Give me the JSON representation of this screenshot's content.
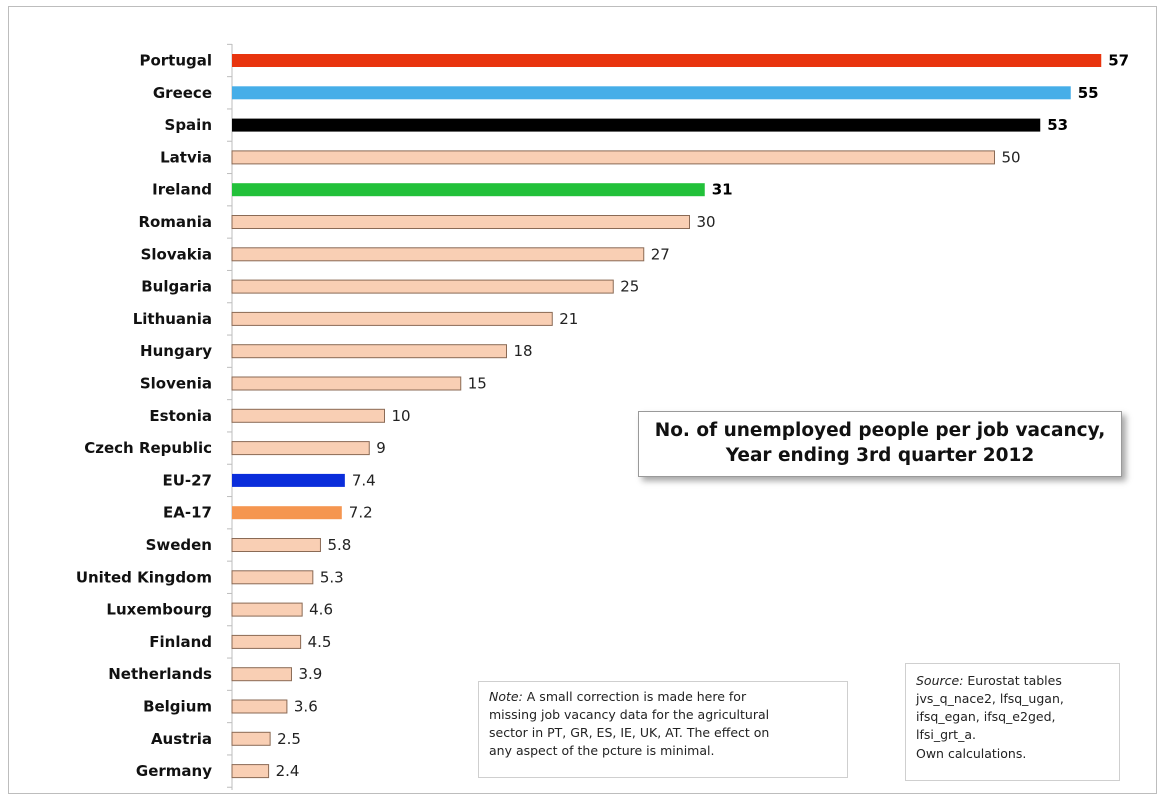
{
  "chart_data": {
    "type": "bar",
    "orientation": "horizontal",
    "title": "No. of unemployed people per job vacancy, Year ending 3rd quarter 2012",
    "title_lines": [
      "No. of unemployed people per job vacancy,",
      "Year ending 3rd quarter 2012"
    ],
    "categories": [
      "Portugal",
      "Greece",
      "Spain",
      "Latvia",
      "Ireland",
      "Romania",
      "Slovakia",
      "Bulgaria",
      "Lithuania",
      "Hungary",
      "Slovenia",
      "Estonia",
      "Czech Republic",
      "EU-27",
      "EA-17",
      "Sweden",
      "United Kingdom",
      "Luxembourg",
      "Finland",
      "Netherlands",
      "Belgium",
      "Austria",
      "Germany"
    ],
    "values": [
      57,
      55,
      53,
      50,
      31,
      30,
      27,
      25,
      21,
      18,
      15,
      10,
      9,
      7.4,
      7.2,
      5.8,
      5.3,
      4.6,
      4.5,
      3.9,
      3.6,
      2.5,
      2.4
    ],
    "value_labels": [
      "57",
      "55",
      "53",
      "50",
      "31",
      "30",
      "27",
      "25",
      "21",
      "18",
      "15",
      "10",
      "9",
      "7.4",
      "7.2",
      "5.8",
      "5.3",
      "4.6",
      "4.5",
      "3.9",
      "3.6",
      "2.5",
      "2.4"
    ],
    "highlighted": [
      "Portugal",
      "Greece",
      "Spain",
      "Ireland"
    ],
    "bar_colors": {
      "default": "#f9cfb4",
      "Portugal": "#e8340e",
      "Greece": "#46aee8",
      "Spain": "#000000",
      "Ireland": "#22c13a",
      "EU-27": "#0a2ddb",
      "EA-17": "#f59650"
    },
    "xlim": [
      0,
      60
    ],
    "grid": false,
    "xlabel": "",
    "ylabel": ""
  },
  "note": {
    "label": "Note:",
    "lines": [
      " A small correction is made here for",
      "missing job vacancy data for the agricultural",
      "sector in PT, GR, ES, IE, UK, AT.  The effect on",
      "any aspect of the pcture is minimal."
    ]
  },
  "source": {
    "label": "Source:",
    "lines": [
      "  Eurostat tables",
      "jvs_q_nace2, lfsq_ugan,",
      "ifsq_egan, ifsq_e2ged,",
      "lfsi_grt_a.",
      "Own calculations."
    ]
  }
}
